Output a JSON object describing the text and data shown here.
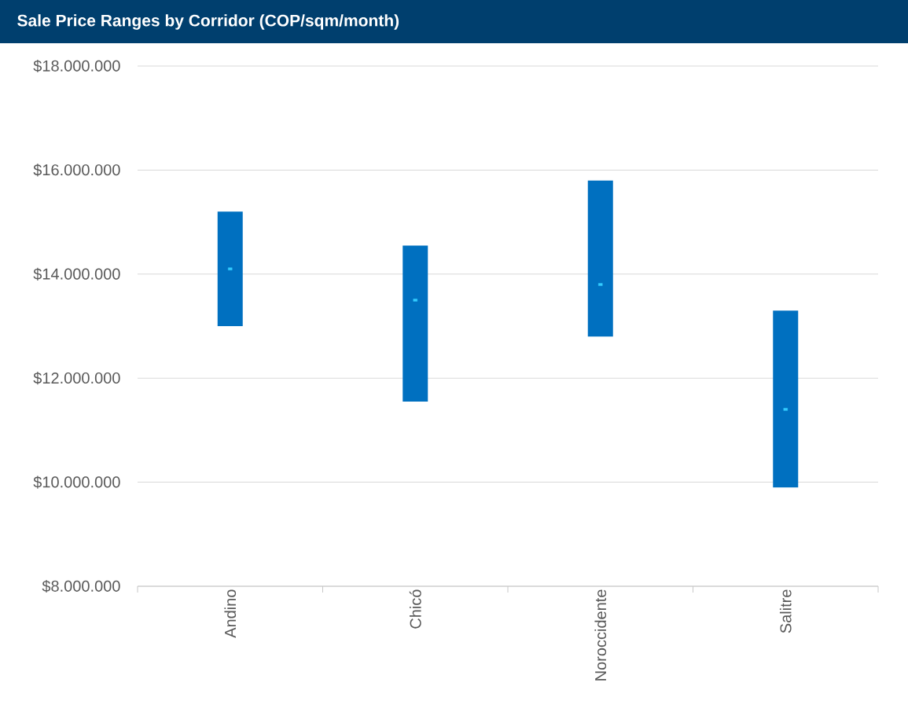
{
  "chart_data": {
    "type": "bar",
    "title": "Sale Price Ranges by Corridor (COP/sqm/month)",
    "categories": [
      "Andino",
      "Chicó",
      "Noroccidente",
      "Salitre"
    ],
    "series": [
      {
        "color": "#0070c0",
        "values": [
          2200000,
          3000000,
          3000000,
          3400000
        ],
        "base": [
          13000000,
          11550000,
          12800000,
          9900000
        ]
      },
      {
        "type": "scatter",
        "color": "#33ccff",
        "marker": "square",
        "values": [
          14100000,
          13500000,
          13800000,
          11400000
        ]
      }
    ],
    "ylim": [
      8000000,
      18000000
    ],
    "yticks": [
      {
        "value": 8000000,
        "label": "$8.000.000"
      },
      {
        "value": 10000000,
        "label": "$10.000.000"
      },
      {
        "value": 12000000,
        "label": "$12.000.000"
      },
      {
        "value": 14000000,
        "label": "$14.000.000"
      },
      {
        "value": 16000000,
        "label": "$16.000.000"
      },
      {
        "value": 18000000,
        "label": "$18.000.000"
      }
    ],
    "grid": "y"
  }
}
